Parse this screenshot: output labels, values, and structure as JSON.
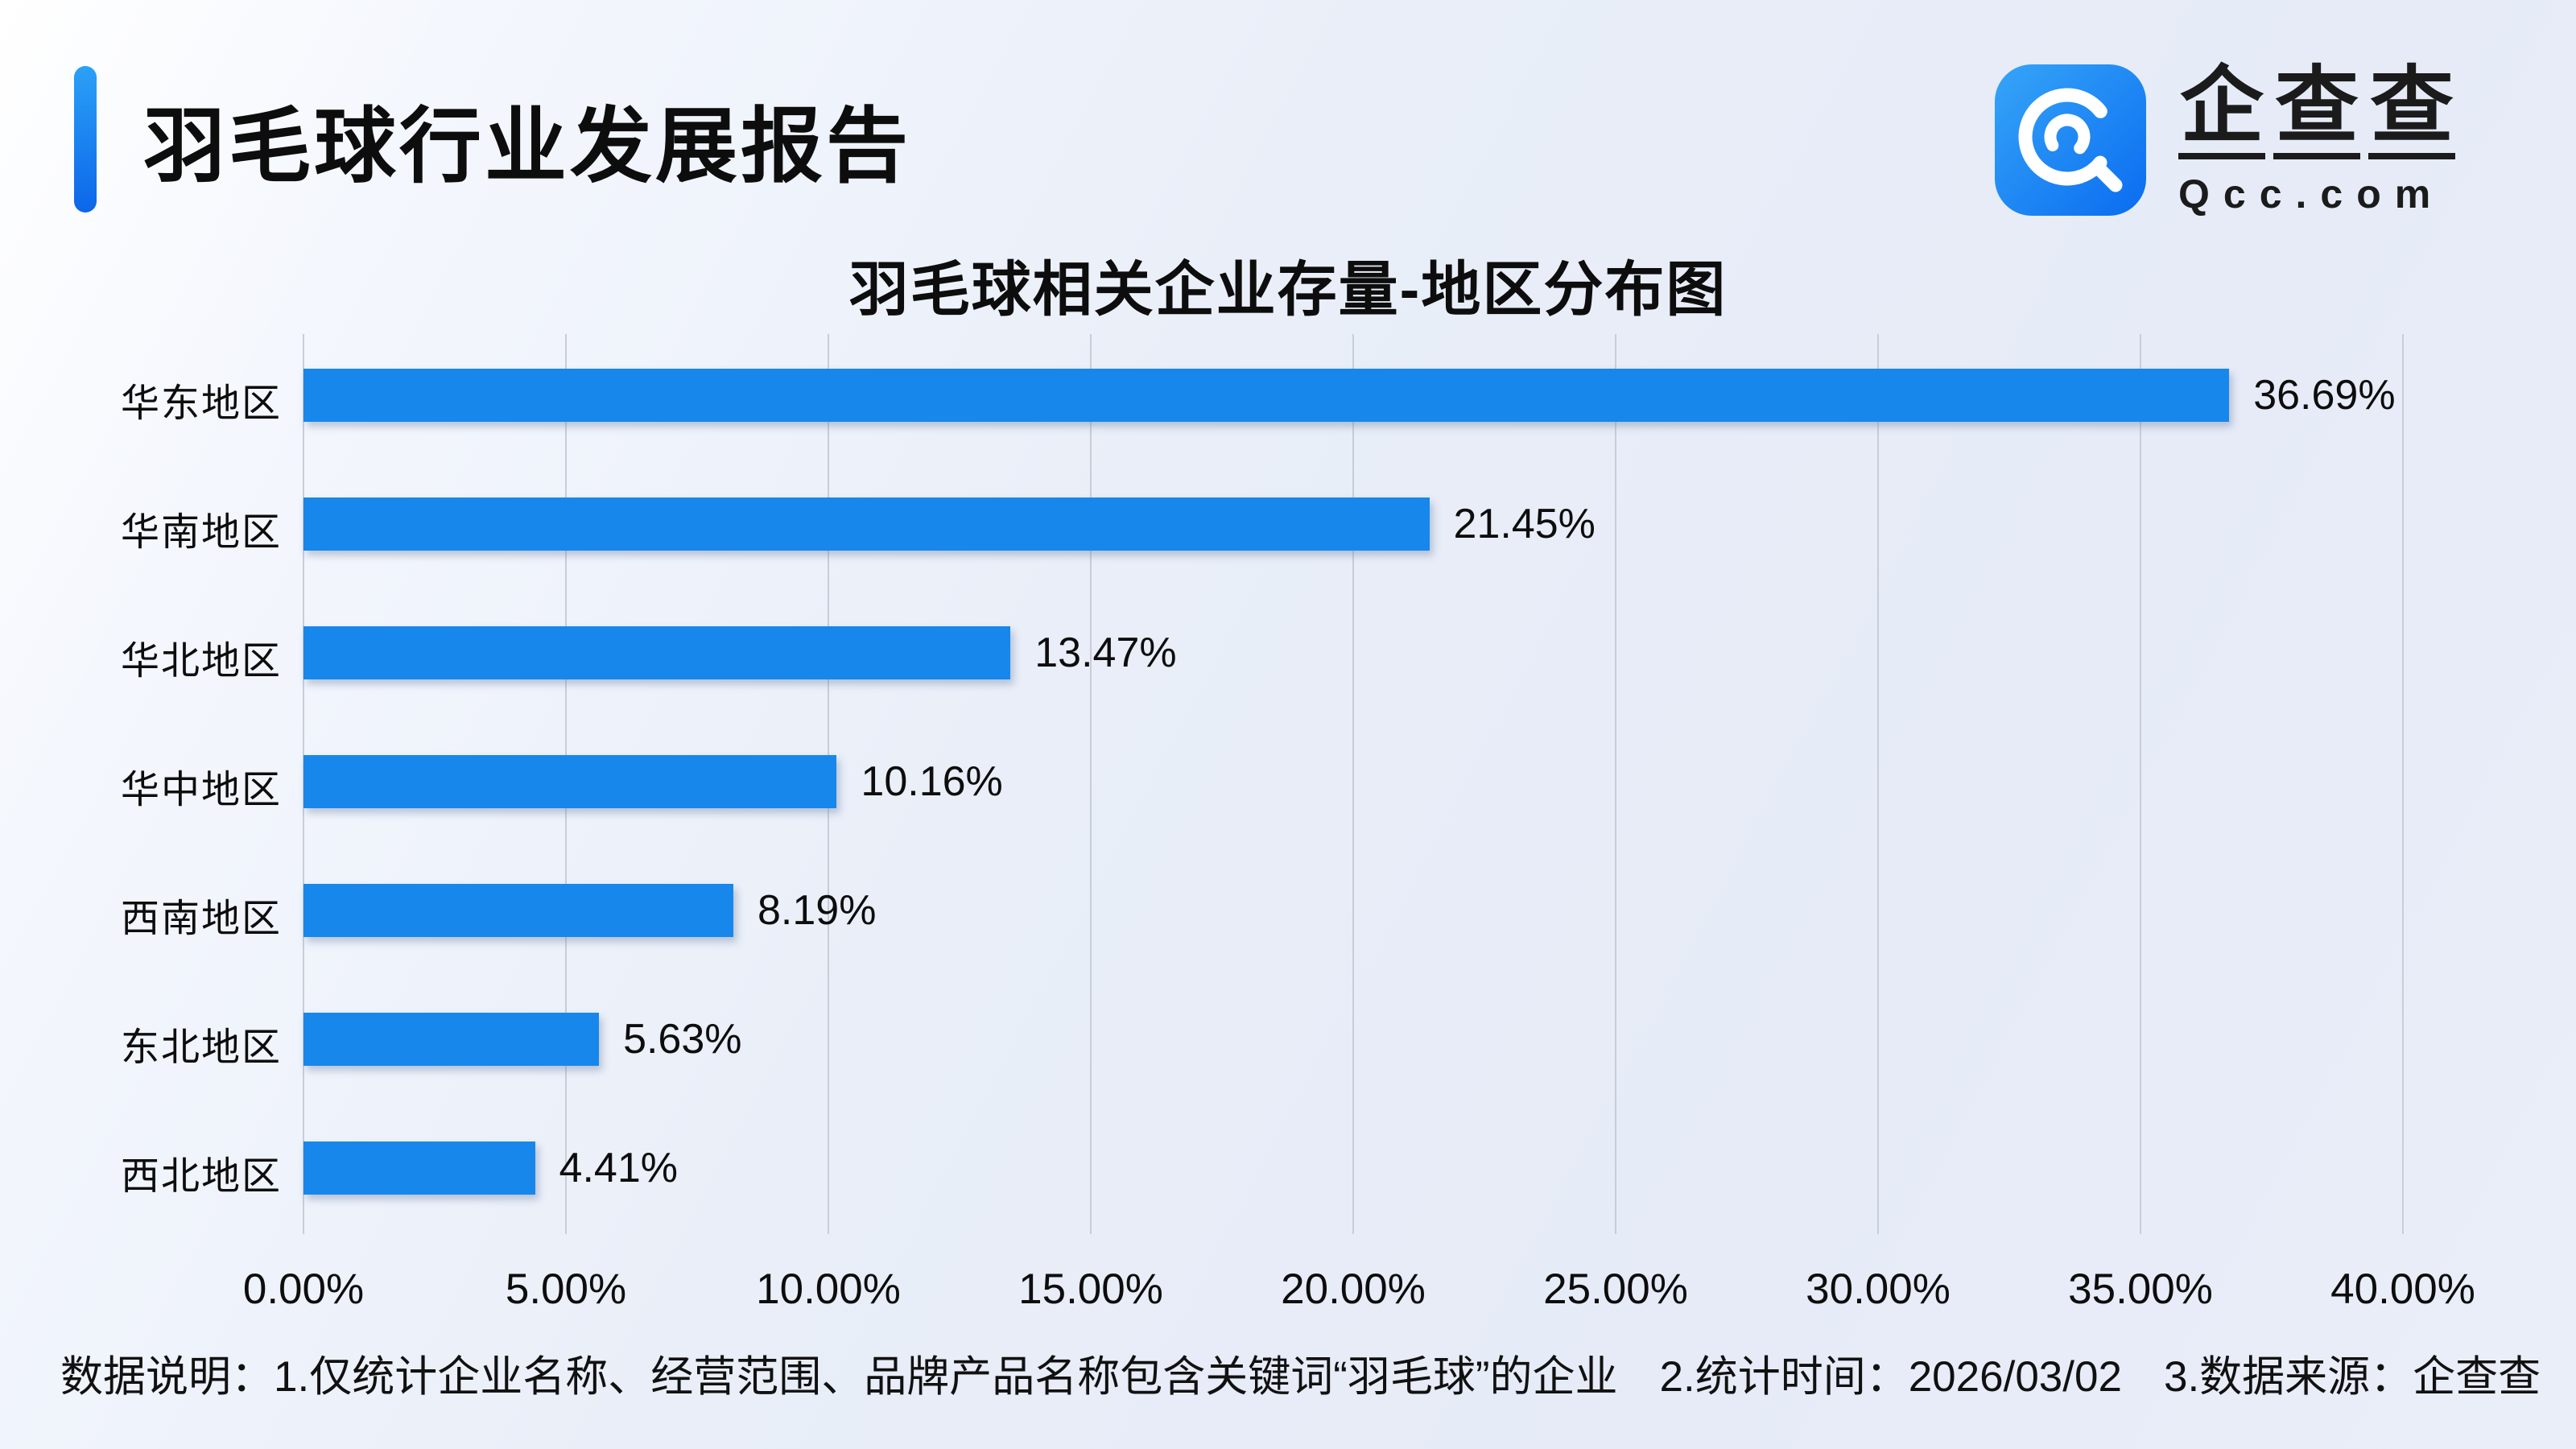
{
  "header": {
    "title": "羽毛球行业发展报告",
    "accent_color": "#0c66e9"
  },
  "logo": {
    "icon_name": "qcc-logo-icon",
    "brand_chars": [
      "企",
      "查",
      "查"
    ],
    "brand_en": "Qcc.com",
    "icon_gradient_start": "#36a5f8",
    "icon_gradient_end": "#0a6cf0"
  },
  "chart_data": {
    "type": "bar",
    "orientation": "horizontal",
    "title": "羽毛球相关企业存量-地区分布图",
    "categories": [
      "华东地区",
      "华南地区",
      "华北地区",
      "华中地区",
      "西南地区",
      "东北地区",
      "西北地区"
    ],
    "values": [
      36.69,
      21.45,
      13.47,
      10.16,
      8.19,
      5.63,
      4.41
    ],
    "value_labels": [
      "36.69%",
      "21.45%",
      "13.47%",
      "10.16%",
      "8.19%",
      "5.63%",
      "4.41%"
    ],
    "x_ticks": [
      "0.00%",
      "5.00%",
      "10.00%",
      "15.00%",
      "20.00%",
      "25.00%",
      "30.00%",
      "35.00%",
      "40.00%"
    ],
    "xlim": [
      0,
      40
    ],
    "xlabel": "",
    "ylabel": "",
    "grid": true,
    "legend": "none",
    "bar_color": "#1787ec",
    "gridline_color": "#c9cdd8"
  },
  "footer": {
    "label": "数据说明：",
    "note1": "1.仅统计企业名称、经营范围、品牌产品名称包含关键词“羽毛球”的企业",
    "note2": "2.统计时间：2026/03/02",
    "note3": "3.数据来源：企查查"
  }
}
